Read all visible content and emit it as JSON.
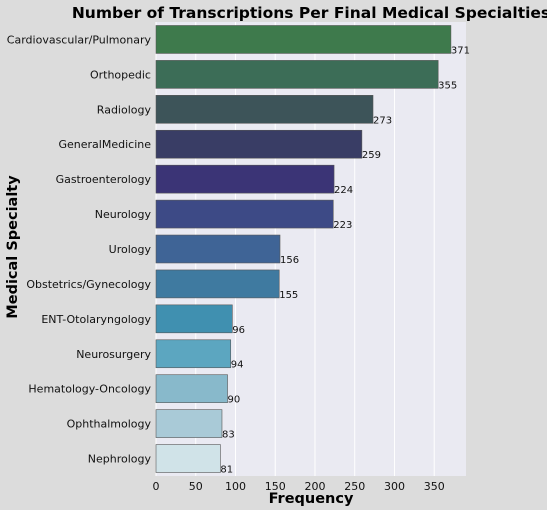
{
  "chart_data": {
    "type": "bar",
    "orientation": "horizontal",
    "title": "Number of Transcriptions Per Final Medical Specialties",
    "xlabel": "Frequency",
    "ylabel": "Medical Specialty",
    "categories": [
      "Cardiovascular/Pulmonary",
      "Orthopedic",
      "Radiology",
      "GeneralMedicine",
      "Gastroenterology",
      "Neurology",
      "Urology",
      "Obstetrics/Gynecology",
      "ENT-Otolaryngology",
      "Neurosurgery",
      "Hematology-Oncology",
      "Ophthalmology",
      "Nephrology"
    ],
    "values": [
      371,
      355,
      273,
      259,
      224,
      223,
      156,
      155,
      96,
      94,
      90,
      83,
      81
    ],
    "data_labels": [
      "371",
      "355",
      "273",
      "259",
      "224",
      "223",
      "156",
      "155",
      "96",
      "94",
      "90",
      "83",
      "81"
    ],
    "xlim": [
      0,
      390
    ],
    "xticks": [
      0,
      50,
      100,
      150,
      200,
      250,
      300,
      350
    ],
    "xtick_labels": [
      "0",
      "50",
      "100",
      "150",
      "200",
      "250",
      "300",
      "350"
    ],
    "grid": true,
    "colors": [
      "#3e7a4c",
      "#3c6d57",
      "#3d5459",
      "#393d65",
      "#3b3476",
      "#3d4a86",
      "#3f6496",
      "#3f7aa0",
      "#4090b0",
      "#5ca6c0",
      "#88b9cb",
      "#a9cad7",
      "#d0e3e8"
    ],
    "page_background": "#dcdcdc",
    "plot_background": "#eaeaf2"
  }
}
